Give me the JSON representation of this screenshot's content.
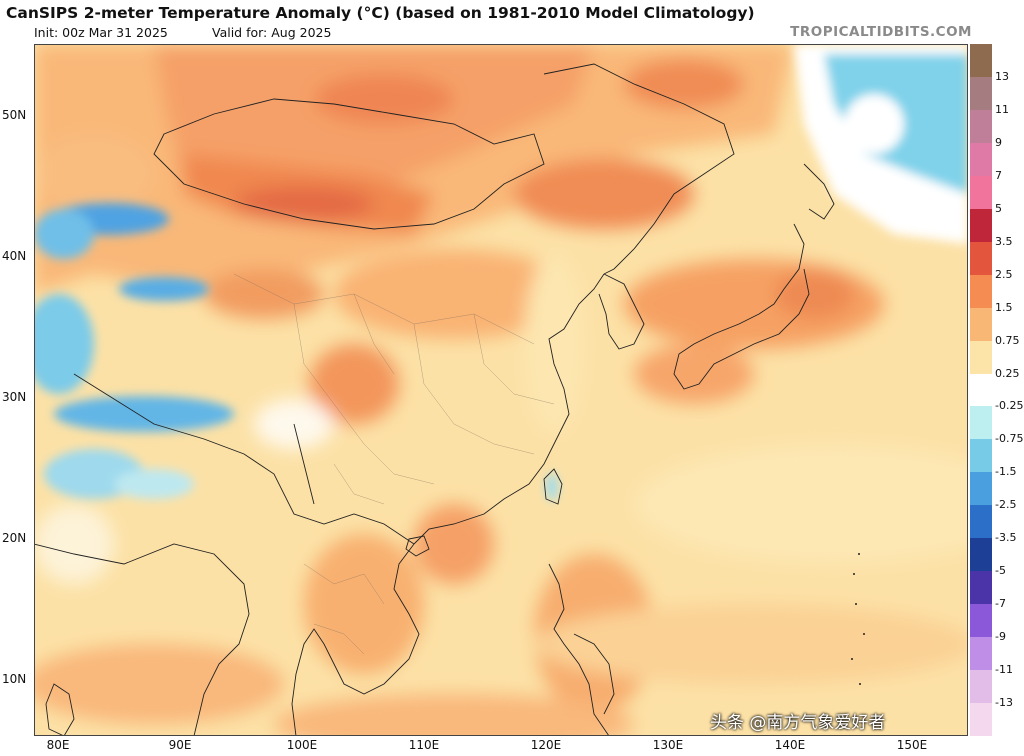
{
  "header": {
    "title": "CanSIPS 2-meter Temperature Anomaly (°C) (based on 1981-2010 Model Climatology)",
    "init": "Init: 00z Mar 31 2025",
    "valid": "Valid for: Aug 2025",
    "brand": "TROPICALTIDBITS.COM"
  },
  "axes": {
    "lat_labels": [
      "50N",
      "40N",
      "30N",
      "20N",
      "10N"
    ],
    "lon_labels": [
      "80E",
      "90E",
      "100E",
      "110E",
      "120E",
      "130E",
      "140E",
      "150E"
    ]
  },
  "colorbar": {
    "labels": [
      "13",
      "11",
      "9",
      "7",
      "5",
      "3.5",
      "2.5",
      "1.5",
      "0.75",
      "0.25",
      "-0.25",
      "-0.75",
      "-1.5",
      "-2.5",
      "-3.5",
      "-5",
      "-7",
      "-9",
      "-11",
      "-13"
    ],
    "colors": [
      "#8e6b4f",
      "#a57c80",
      "#bf7f98",
      "#df7aa7",
      "#f0749b",
      "#c0263a",
      "#e4553d",
      "#f58c52",
      "#f9b775",
      "#fce4a8",
      "#ffffff",
      "#bdeef0",
      "#78cbe6",
      "#4a9fdf",
      "#2b6fc8",
      "#1d3f96",
      "#4b33a8",
      "#8a58d8",
      "#bf8ee6",
      "#e1bde8",
      "#f4d8ee"
    ]
  },
  "watermark": "头条 @南方气象爱好者"
}
